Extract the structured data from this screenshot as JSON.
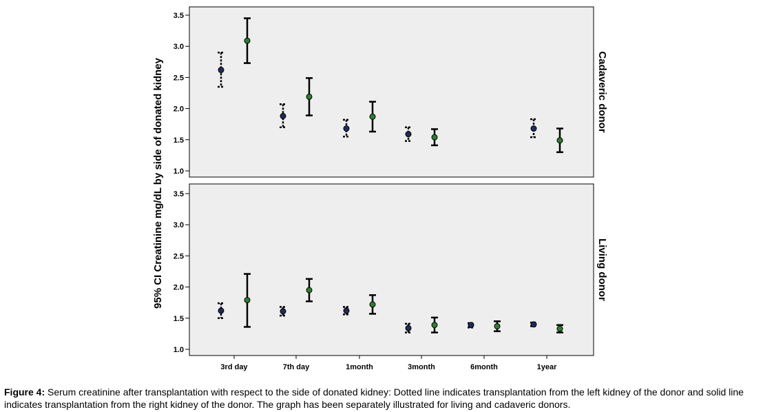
{
  "chart_data": {
    "type": "errorbar",
    "ylabel": "95% CI Creatinine mg/dL by side of donated kidney",
    "categories": [
      "3rd day",
      "7th day",
      "1month",
      "3month",
      "6month",
      "1year"
    ],
    "ylim": [
      1.0,
      3.5
    ],
    "yticks": [
      "1.0",
      "1.5",
      "2.0",
      "2.5",
      "3.0",
      "3.5"
    ],
    "grid": false,
    "panels": [
      {
        "name": "Cadaveric donor",
        "series": [
          {
            "name": "Left kidney",
            "line_style": "dotted",
            "marker_color": "#1f2a5c",
            "points": [
              {
                "category": "3rd day",
                "mean": 2.62,
                "lower": 2.35,
                "upper": 2.9
              },
              {
                "category": "7th day",
                "mean": 1.88,
                "lower": 1.7,
                "upper": 2.07
              },
              {
                "category": "1month",
                "mean": 1.68,
                "lower": 1.55,
                "upper": 1.82
              },
              {
                "category": "3month",
                "mean": 1.59,
                "lower": 1.48,
                "upper": 1.7
              },
              {
                "category": "1year",
                "mean": 1.68,
                "lower": 1.54,
                "upper": 1.83
              }
            ]
          },
          {
            "name": "Right kidney",
            "line_style": "solid",
            "marker_color": "#2e7d32",
            "points": [
              {
                "category": "3rd day",
                "mean": 3.09,
                "lower": 2.73,
                "upper": 3.45
              },
              {
                "category": "7th day",
                "mean": 2.19,
                "lower": 1.89,
                "upper": 2.49
              },
              {
                "category": "1month",
                "mean": 1.87,
                "lower": 1.63,
                "upper": 2.11
              },
              {
                "category": "3month",
                "mean": 1.54,
                "lower": 1.41,
                "upper": 1.67
              },
              {
                "category": "1year",
                "mean": 1.49,
                "lower": 1.3,
                "upper": 1.68
              }
            ]
          }
        ]
      },
      {
        "name": "Living donor",
        "series": [
          {
            "name": "Left kidney",
            "line_style": "dotted",
            "marker_color": "#1f2a5c",
            "points": [
              {
                "category": "3rd day",
                "mean": 1.62,
                "lower": 1.5,
                "upper": 1.74
              },
              {
                "category": "7th day",
                "mean": 1.61,
                "lower": 1.54,
                "upper": 1.68
              },
              {
                "category": "1month",
                "mean": 1.62,
                "lower": 1.56,
                "upper": 1.68
              },
              {
                "category": "3month",
                "mean": 1.34,
                "lower": 1.27,
                "upper": 1.41
              },
              {
                "category": "6month",
                "mean": 1.39,
                "lower": 1.35,
                "upper": 1.42
              },
              {
                "category": "1year",
                "mean": 1.4,
                "lower": 1.37,
                "upper": 1.43
              }
            ]
          },
          {
            "name": "Right kidney",
            "line_style": "solid",
            "marker_color": "#2e7d32",
            "points": [
              {
                "category": "3rd day",
                "mean": 1.79,
                "lower": 1.36,
                "upper": 2.21
              },
              {
                "category": "7th day",
                "mean": 1.95,
                "lower": 1.77,
                "upper": 2.13
              },
              {
                "category": "1month",
                "mean": 1.72,
                "lower": 1.57,
                "upper": 1.87
              },
              {
                "category": "3month",
                "mean": 1.39,
                "lower": 1.27,
                "upper": 1.51
              },
              {
                "category": "6month",
                "mean": 1.37,
                "lower": 1.29,
                "upper": 1.45
              },
              {
                "category": "1year",
                "mean": 1.33,
                "lower": 1.27,
                "upper": 1.39
              }
            ]
          }
        ]
      }
    ]
  },
  "caption": {
    "label": "Figure 4:",
    "text": " Serum creatinine after transplantation with respect to the side of donated kidney: Dotted line indicates transplantation from the left kidney of the donor and solid line indicates transplantation from the right kidney of the donor. The graph has been separately illustrated for living and cadaveric donors."
  },
  "colors": {
    "panel_background": "#eeeeee",
    "axis": "#000000",
    "left_marker": "#1f2a5c",
    "right_marker": "#2e7d32"
  }
}
